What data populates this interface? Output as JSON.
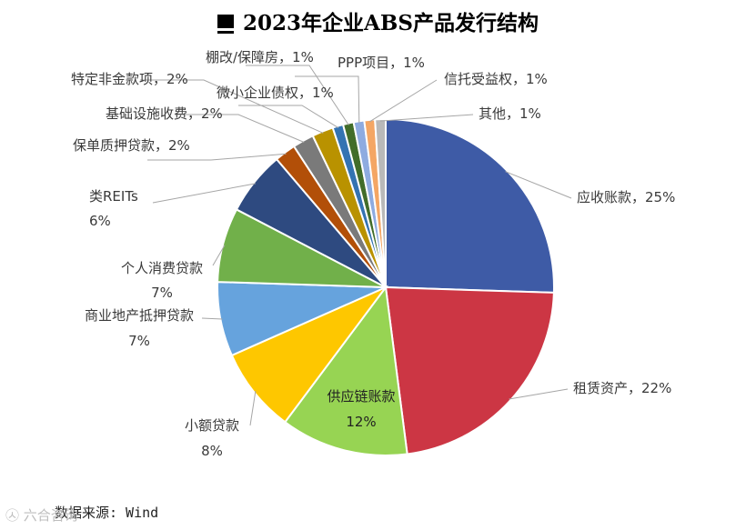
{
  "chart_data": {
    "type": "pie",
    "title": "2023年企业ABS产品发行结构",
    "unit": "%",
    "slices": [
      {
        "label": "应收账款",
        "value": 25,
        "color": "#3e5ba6"
      },
      {
        "label": "租赁资产",
        "value": 22,
        "color": "#cc3644"
      },
      {
        "label": "供应链账款",
        "value": 12,
        "color": "#97d453"
      },
      {
        "label": "小额贷款",
        "value": 8,
        "color": "#fec700"
      },
      {
        "label": "商业地产抵押贷款",
        "value": 7,
        "color": "#66a3dd"
      },
      {
        "label": "个人消费贷款",
        "value": 7,
        "color": "#71b04a"
      },
      {
        "label": "类REITs",
        "value": 6,
        "color": "#2e4a80"
      },
      {
        "label": "保单质押贷款",
        "value": 2,
        "color": "#b24f08"
      },
      {
        "label": "基础设施收费",
        "value": 2,
        "color": "#7a7a7a"
      },
      {
        "label": "特定非金款项",
        "value": 2,
        "color": "#b99200"
      },
      {
        "label": "微小企业债权",
        "value": 1,
        "color": "#3473b2"
      },
      {
        "label": "棚改/保障房",
        "value": 1,
        "color": "#426d2a"
      },
      {
        "label": "PPP项目",
        "value": 1,
        "color": "#8eabe0"
      },
      {
        "label": "信托受益权",
        "value": 1,
        "color": "#f4a664"
      },
      {
        "label": "其他",
        "value": 1,
        "color": "#b9b9b9"
      }
    ],
    "data_labels": [
      "应收账款，25%",
      "租赁资产，22%",
      "供应链账款 12%",
      "小额贷款 8%",
      "商业地产抵押贷款 7%",
      "个人消费贷款 7%",
      "类REITs 6%",
      "保单质押贷款，2%",
      "基础设施收费，2%",
      "特定非金款项，2%",
      "微小企业债权，1%",
      "棚改/保障房，1%",
      "PPP项目，1%",
      "信托受益权，1%",
      "其他，1%"
    ]
  },
  "source_text": "数据来源: Wind",
  "watermark_text": "㉦ 六合咨询"
}
